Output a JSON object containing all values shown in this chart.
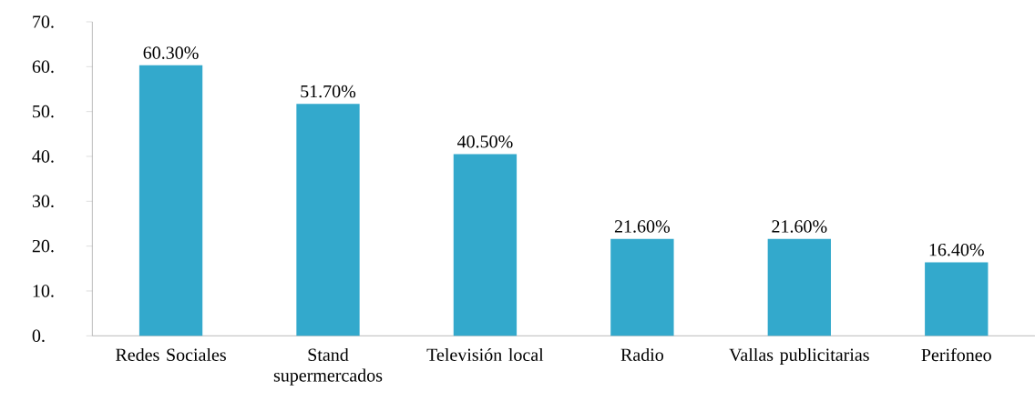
{
  "chart_data": {
    "type": "bar",
    "categories": [
      "Redes Sociales",
      "Stand supermercados",
      "Televisión local",
      "Radio",
      "Vallas publicitarias",
      "Perifoneo"
    ],
    "values": [
      60.3,
      51.7,
      40.5,
      21.6,
      21.6,
      16.4
    ],
    "value_labels": [
      "60.30%",
      "51.70%",
      "40.50%",
      "21.60%",
      "21.60%",
      "16.40%"
    ],
    "color": "#33a9cc",
    "ylim": [
      0,
      70
    ],
    "yticks": [
      {
        "value": 0,
        "label": "0."
      },
      {
        "value": 10,
        "label": "10."
      },
      {
        "value": 20,
        "label": "20."
      },
      {
        "value": 30,
        "label": "30."
      },
      {
        "value": 40,
        "label": "40."
      },
      {
        "value": 50,
        "label": "50."
      },
      {
        "value": 60,
        "label": "60."
      },
      {
        "value": 70,
        "label": "70."
      }
    ],
    "grid": false
  }
}
